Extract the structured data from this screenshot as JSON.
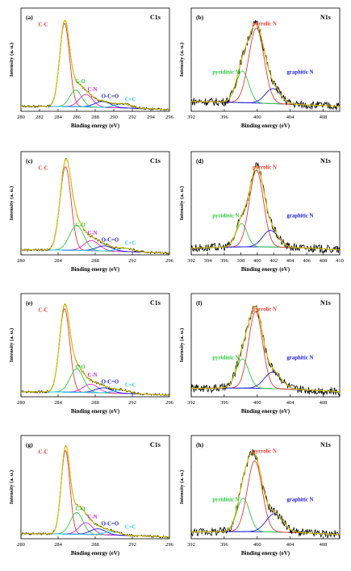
{
  "chart_data": [
    {
      "panel": "(a)",
      "spectrum": "C1s",
      "type": "line",
      "xlabel": "Binding energy (eV)",
      "ylabel": "Intensity (a. u.)",
      "xlim": [
        280,
        296
      ],
      "x_ticks": [
        280,
        282,
        284,
        286,
        288,
        290,
        292,
        294,
        296
      ],
      "background": [
        0.06,
        0.06,
        0.02
      ],
      "peaks": [
        {
          "name": "C-C",
          "center": 284.7,
          "height": 1.0,
          "fwhm": 1.25,
          "color": "#e53935"
        },
        {
          "name": "C-O",
          "center": 285.9,
          "height": 0.2,
          "fwhm": 1.5,
          "color": "#2ecc40"
        },
        {
          "name": "C-N",
          "center": 287.0,
          "height": 0.15,
          "fwhm": 1.7,
          "color": "#e020e0"
        },
        {
          "name": "O-C=O",
          "center": 288.8,
          "height": 0.07,
          "fwhm": 2.0,
          "color": "#1a1ad8"
        },
        {
          "name": "C=C",
          "center": 291.0,
          "height": 0.05,
          "fwhm": 2.0,
          "color": "#22ccee"
        }
      ]
    },
    {
      "panel": "(b)",
      "spectrum": "N1s",
      "type": "line",
      "xlabel": "Binding energy (eV)",
      "ylabel": "Intensity (a. u.)",
      "xlim": [
        392,
        410
      ],
      "x_ticks": [
        392,
        396,
        400,
        404,
        408
      ],
      "background": [
        0.12,
        0.1,
        0.06
      ],
      "peaks": [
        {
          "name": "pyridinic N",
          "center": 398.2,
          "height": 0.38,
          "fwhm": 1.8,
          "color": "#2ecc40"
        },
        {
          "name": "pyrrolic N",
          "center": 399.9,
          "height": 0.9,
          "fwhm": 2.2,
          "color": "#e53935"
        },
        {
          "name": "graphitic N",
          "center": 401.9,
          "height": 0.18,
          "fwhm": 2.2,
          "color": "#1a1ad8"
        }
      ]
    },
    {
      "panel": "(c)",
      "spectrum": "C1s",
      "type": "line",
      "xlabel": "Binding energy (eV)",
      "ylabel": "Intensity (a. u.)",
      "xlim": [
        280,
        296
      ],
      "x_ticks": [
        280,
        284,
        288,
        292,
        296
      ],
      "background": [
        0.06,
        0.06,
        0.02
      ],
      "peaks": [
        {
          "name": "C-C",
          "center": 284.8,
          "height": 1.0,
          "fwhm": 1.4,
          "color": "#e53935"
        },
        {
          "name": "C-O",
          "center": 286.0,
          "height": 0.3,
          "fwhm": 1.8,
          "color": "#2ecc40"
        },
        {
          "name": "C-N",
          "center": 287.6,
          "height": 0.12,
          "fwhm": 1.9,
          "color": "#e020e0"
        },
        {
          "name": "O-C=O",
          "center": 289.0,
          "height": 0.06,
          "fwhm": 2.0,
          "color": "#1a1ad8"
        },
        {
          "name": "C=C",
          "center": 291.2,
          "height": 0.04,
          "fwhm": 2.0,
          "color": "#22ccee"
        }
      ]
    },
    {
      "panel": "(d)",
      "spectrum": "N1s",
      "type": "line",
      "xlabel": "Binding energy (eV)",
      "ylabel": "Intensity (a. u.)",
      "xlim": [
        392,
        410
      ],
      "x_ticks": [
        392,
        394,
        396,
        398,
        400,
        402,
        404,
        406,
        408,
        410
      ],
      "background": [
        0.08,
        0.12,
        0.06
      ],
      "peaks": [
        {
          "name": "pyridinic N",
          "center": 398.1,
          "height": 0.28,
          "fwhm": 1.6,
          "color": "#2ecc40"
        },
        {
          "name": "pyrrolic N",
          "center": 399.9,
          "height": 0.92,
          "fwhm": 2.0,
          "color": "#e53935"
        },
        {
          "name": "graphitic N",
          "center": 401.6,
          "height": 0.2,
          "fwhm": 2.2,
          "color": "#1a1ad8"
        }
      ]
    },
    {
      "panel": "(e)",
      "spectrum": "C1s",
      "type": "line",
      "xlabel": "Binding energy (eV)",
      "ylabel": "Intensity (a. u.)",
      "xlim": [
        280,
        296
      ],
      "x_ticks": [
        280,
        284,
        288,
        292,
        296
      ],
      "background": [
        0.06,
        0.06,
        0.02
      ],
      "peaks": [
        {
          "name": "C-C",
          "center": 284.7,
          "height": 1.0,
          "fwhm": 1.3,
          "color": "#e53935"
        },
        {
          "name": "C-O",
          "center": 286.0,
          "height": 0.28,
          "fwhm": 1.7,
          "color": "#2ecc40"
        },
        {
          "name": "C-N",
          "center": 287.5,
          "height": 0.1,
          "fwhm": 1.9,
          "color": "#e020e0"
        },
        {
          "name": "O-C=O",
          "center": 288.9,
          "height": 0.06,
          "fwhm": 2.0,
          "color": "#1a1ad8"
        },
        {
          "name": "C=C",
          "center": 290.8,
          "height": 0.04,
          "fwhm": 2.0,
          "color": "#22ccee"
        }
      ]
    },
    {
      "panel": "(f)",
      "spectrum": "N1s",
      "type": "line",
      "xlabel": "Binding energy (eV)",
      "ylabel": "Intensity (a. u.)",
      "xlim": [
        392,
        410
      ],
      "x_ticks": [
        392,
        396,
        400,
        404,
        408
      ],
      "background": [
        0.1,
        0.12,
        0.06
      ],
      "peaks": [
        {
          "name": "pyridinic N",
          "center": 398.2,
          "height": 0.35,
          "fwhm": 1.8,
          "color": "#2ecc40"
        },
        {
          "name": "pyrrolic N",
          "center": 399.8,
          "height": 0.92,
          "fwhm": 2.0,
          "color": "#e53935"
        },
        {
          "name": "graphitic N",
          "center": 401.9,
          "height": 0.2,
          "fwhm": 2.4,
          "color": "#1a1ad8"
        }
      ]
    },
    {
      "panel": "(g)",
      "spectrum": "C1s",
      "type": "line",
      "xlabel": "Binding energy (eV)",
      "ylabel": "Intensity (a. u.)",
      "xlim": [
        280,
        296
      ],
      "x_ticks": [
        280,
        284,
        288,
        292,
        296
      ],
      "background": [
        0.06,
        0.06,
        0.02
      ],
      "peaks": [
        {
          "name": "C-C",
          "center": 284.8,
          "height": 1.0,
          "fwhm": 1.1,
          "color": "#e53935"
        },
        {
          "name": "C-O",
          "center": 286.0,
          "height": 0.26,
          "fwhm": 1.6,
          "color": "#2ecc40"
        },
        {
          "name": "C-N",
          "center": 287.0,
          "height": 0.14,
          "fwhm": 1.7,
          "color": "#e020e0"
        },
        {
          "name": "O-C=O",
          "center": 288.3,
          "height": 0.07,
          "fwhm": 1.9,
          "color": "#1a1ad8"
        },
        {
          "name": "C=C",
          "center": 289.8,
          "height": 0.04,
          "fwhm": 2.0,
          "color": "#22ccee"
        }
      ]
    },
    {
      "panel": "(h)",
      "spectrum": "N1s",
      "type": "line",
      "xlabel": "Binding energy (eV)",
      "ylabel": "Intensity (a. u.)",
      "xlim": [
        392,
        410
      ],
      "x_ticks": [
        392,
        396,
        400,
        404,
        408
      ],
      "background": [
        0.08,
        0.1,
        0.05
      ],
      "peaks": [
        {
          "name": "pyridinic N",
          "center": 398.3,
          "height": 0.4,
          "fwhm": 1.8,
          "color": "#2ecc40"
        },
        {
          "name": "pyrrolic N",
          "center": 399.7,
          "height": 0.85,
          "fwhm": 2.1,
          "color": "#e53935"
        },
        {
          "name": "graphitic N",
          "center": 402.1,
          "height": 0.22,
          "fwhm": 2.4,
          "color": "#1a1ad8"
        }
      ]
    }
  ]
}
